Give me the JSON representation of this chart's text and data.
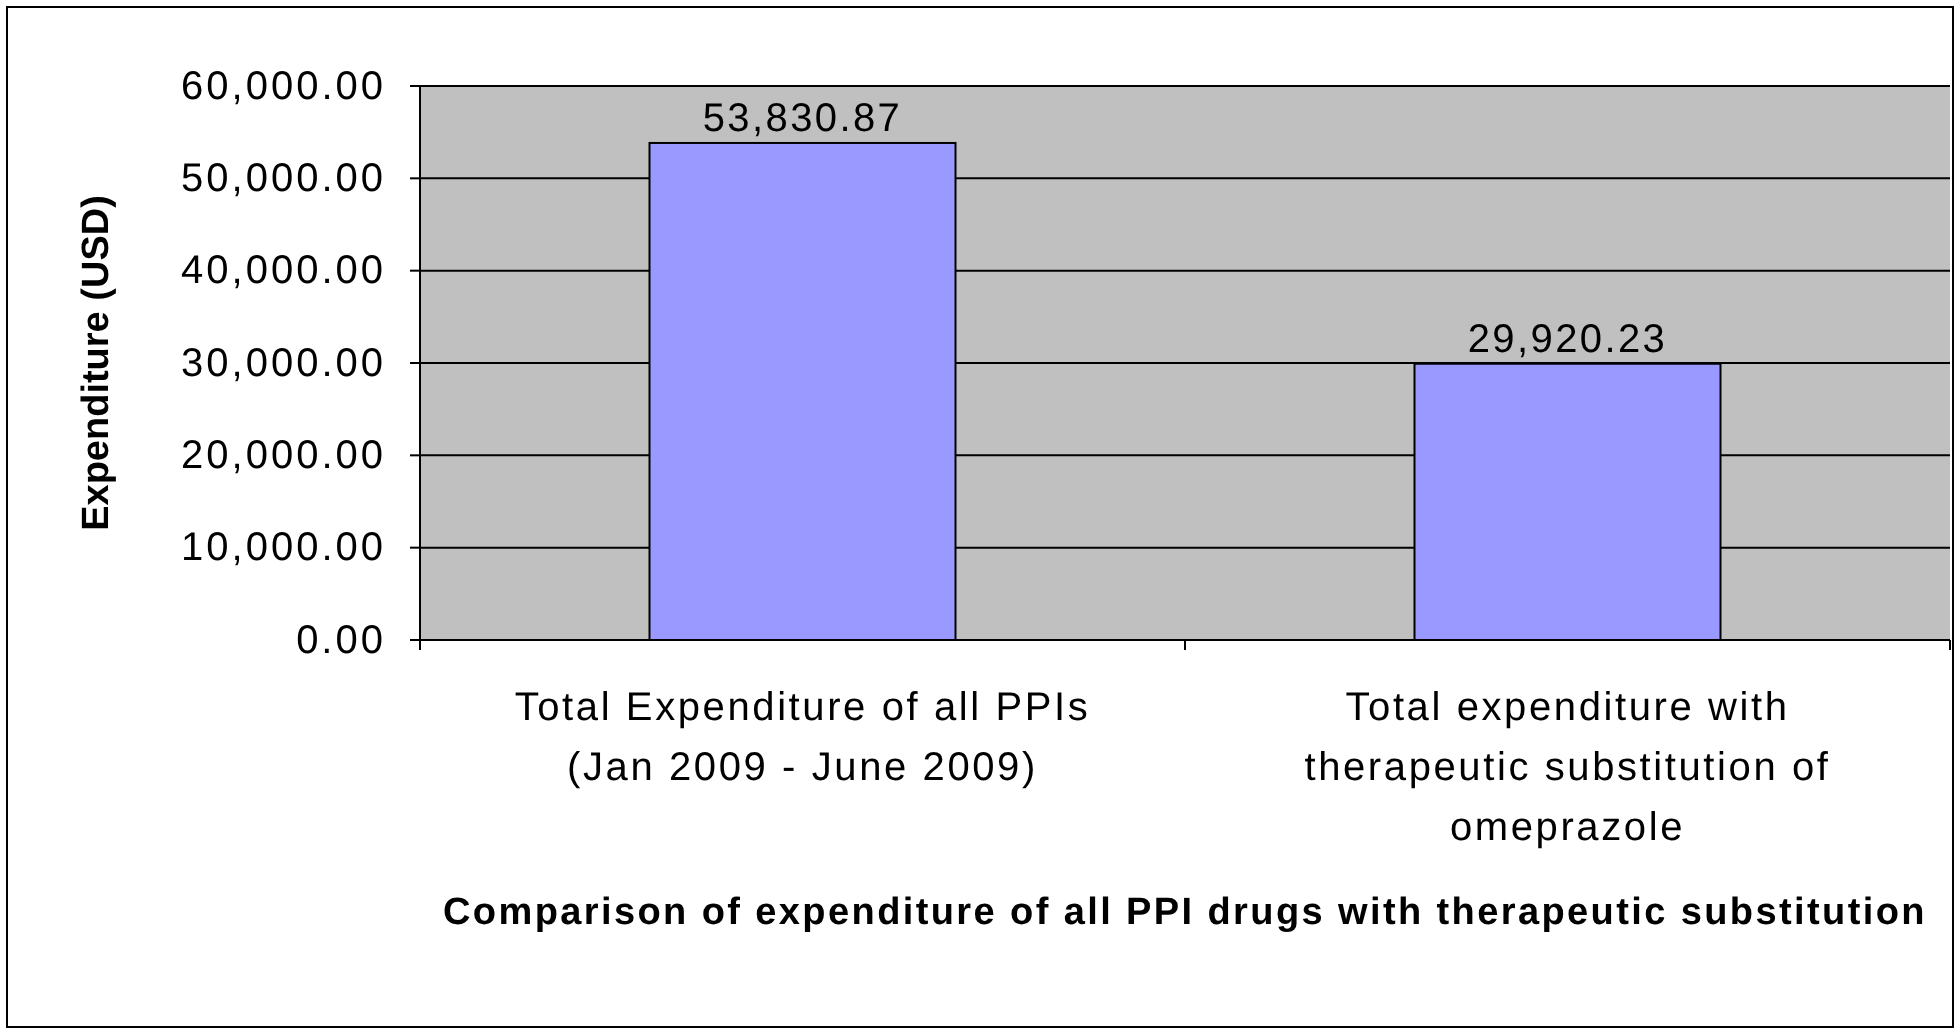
{
  "chart_data": {
    "type": "bar",
    "xlabel": "Comparison of expenditure of all PPI drugs with therapeutic substitution",
    "ylabel": "Expenditure (USD)",
    "categories": [
      "Total Expenditure of all PPIs (Jan 2009 - June 2009)",
      "Total expenditure with therapeutic substitution of omeprazole"
    ],
    "values": [
      53830.87,
      29920.23
    ],
    "color": "#9999ff",
    "value_labels": [
      "53,830.87",
      "29,920.23"
    ],
    "ylim": [
      0,
      60000
    ],
    "yticks": [
      {
        "value": 0,
        "label": "0.00"
      },
      {
        "value": 10000,
        "label": "10,000.00"
      },
      {
        "value": 20000,
        "label": "20,000.00"
      },
      {
        "value": 30000,
        "label": "30,000.00"
      },
      {
        "value": 40000,
        "label": "40,000.00"
      },
      {
        "value": 50000,
        "label": "50,000.00"
      },
      {
        "value": 60000,
        "label": "60,000.00"
      }
    ],
    "grid": "y"
  }
}
